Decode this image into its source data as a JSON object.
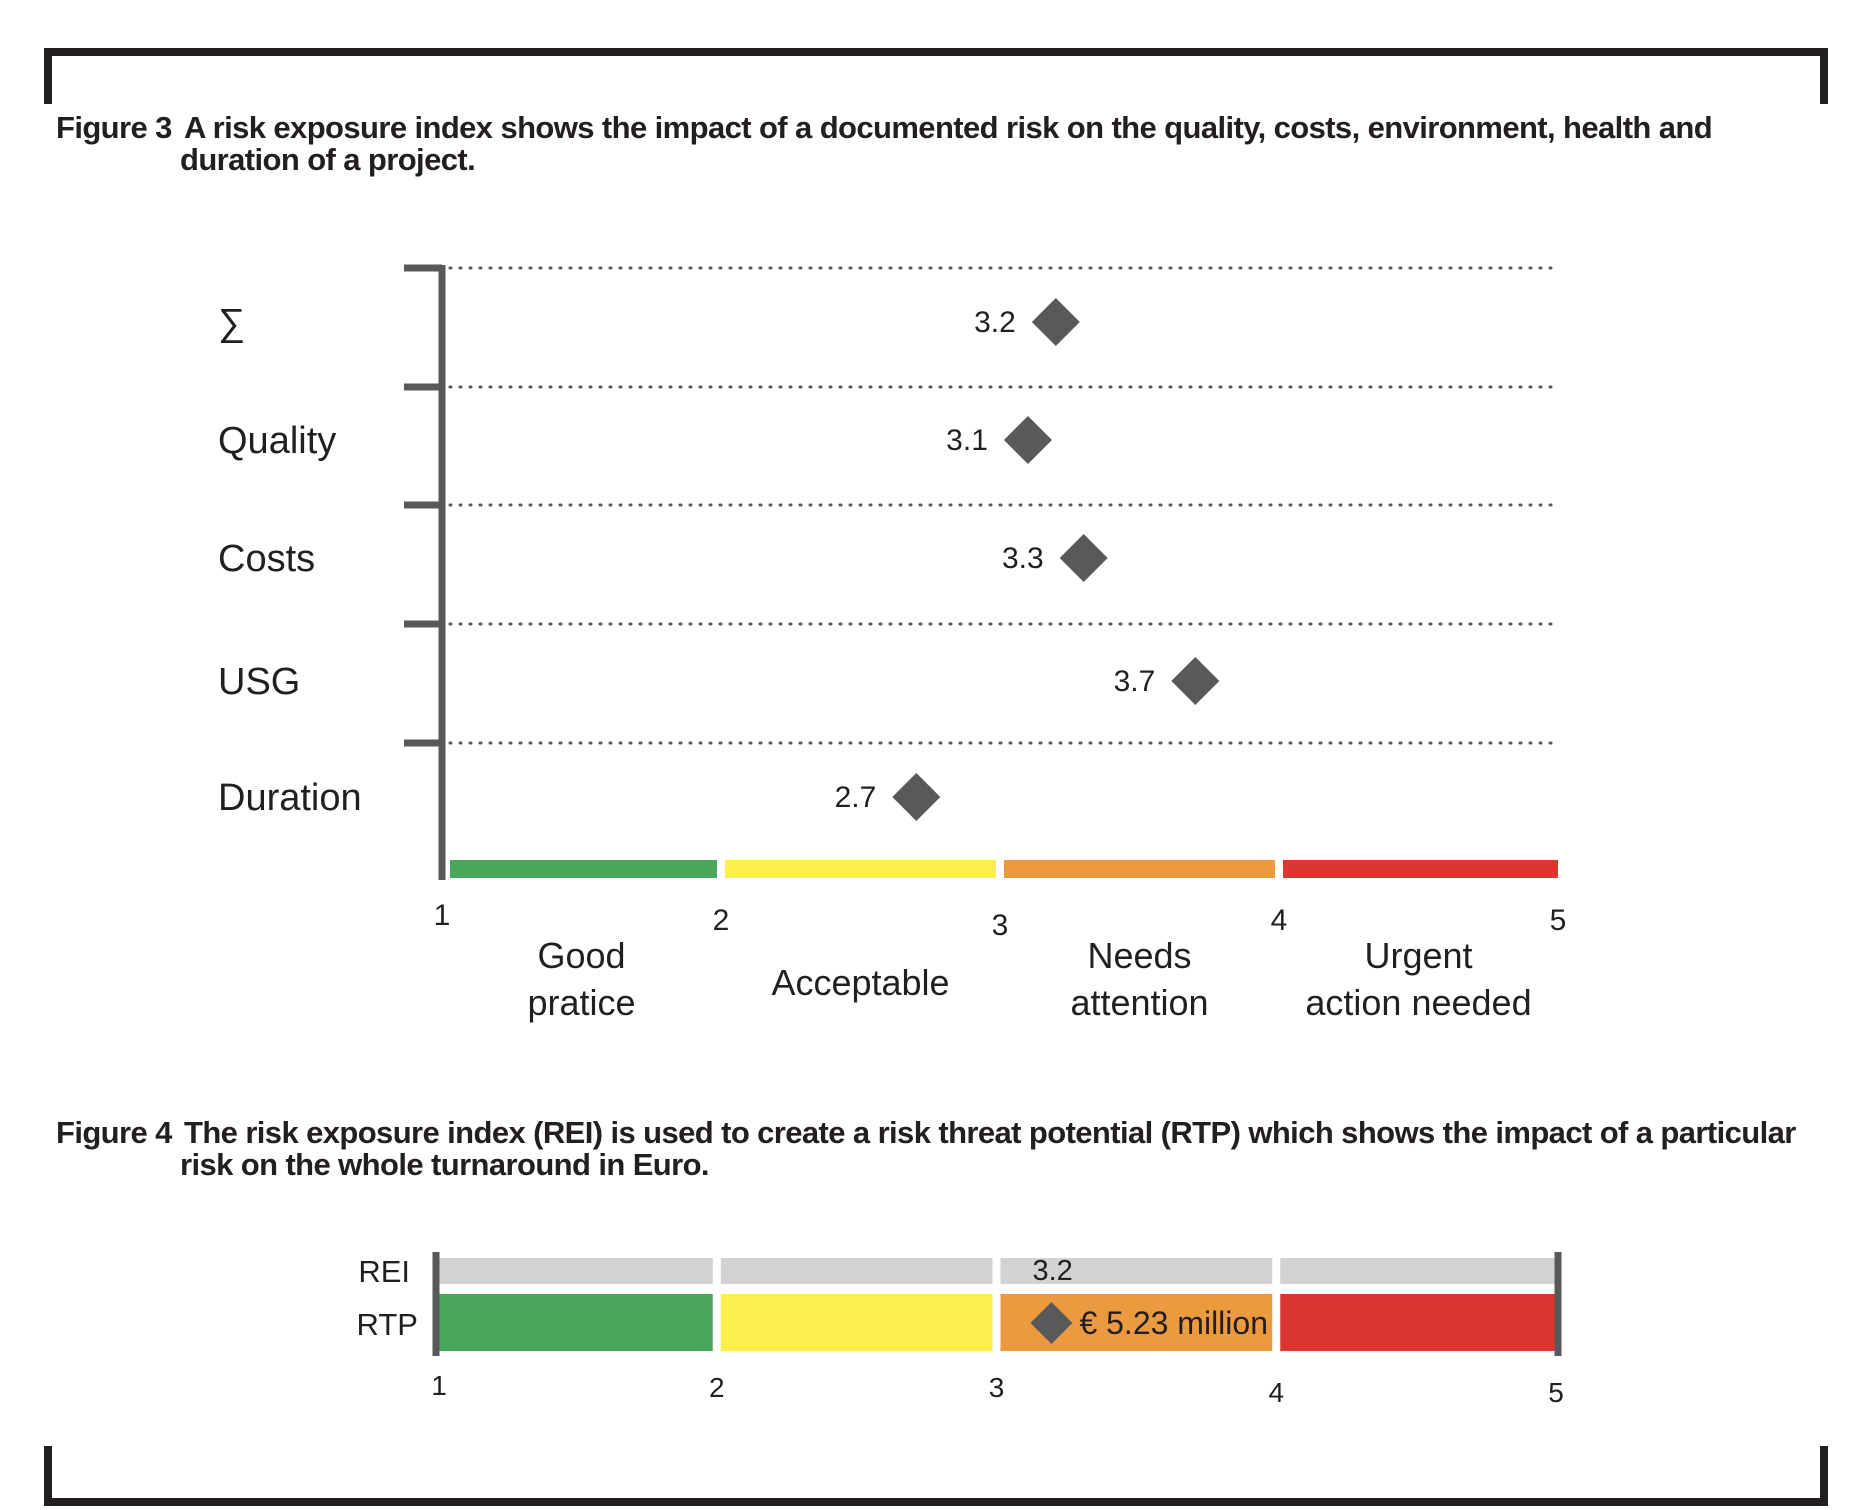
{
  "figure3": {
    "caption_number": "Figure 3",
    "caption_line1": "A risk exposure index shows the impact of a documented risk on the quality, costs, environment, health and",
    "caption_line2": "duration of a project."
  },
  "figure4": {
    "caption_number": "Figure 4",
    "caption_line1": "The risk exposure index (REI) is used to create a risk threat potential (RTP) which shows the impact of a particular",
    "caption_line2": "risk on the whole turnaround in Euro."
  },
  "colors": {
    "text": "#231f20",
    "marker": "#58595b",
    "axis": "#58595b",
    "good": "#4ba55a",
    "acceptable": "#fcee4f",
    "attention": "#ec9a3f",
    "urgent": "#db3731",
    "rei_bar": "#d1d2d3"
  },
  "chart_data": [
    {
      "type": "scatter",
      "title": "",
      "categories": [
        "∑",
        "Quality",
        "Costs",
        "USG",
        "Duration"
      ],
      "series": [
        {
          "values": [
            3.2,
            3.1,
            3.3,
            3.7,
            2.7
          ]
        }
      ],
      "value_labels": [
        "3.2",
        "3.1",
        "3.3",
        "3.7",
        "2.7"
      ],
      "xlim": [
        1,
        5
      ],
      "x_ticks": [
        "1",
        "2",
        "3",
        "4",
        "5"
      ],
      "grid": "dotted horizontal separators between categories",
      "bands": [
        {
          "from": 1,
          "to": 2,
          "label_lines": [
            "Good",
            "pratice"
          ],
          "color": "#4ba55a"
        },
        {
          "from": 2,
          "to": 3,
          "label_lines": [
            "Acceptable"
          ],
          "color": "#fcee4f"
        },
        {
          "from": 3,
          "to": 4,
          "label_lines": [
            "Needs",
            "attention"
          ],
          "color": "#ec9a3f"
        },
        {
          "from": 4,
          "to": 5,
          "label_lines": [
            "Urgent",
            "action needed"
          ],
          "color": "#db3731"
        }
      ]
    },
    {
      "type": "bar",
      "title": "",
      "rows": [
        "REI",
        "RTP"
      ],
      "xlim": [
        1,
        5
      ],
      "x_ticks": [
        "1",
        "2",
        "3",
        "4",
        "5"
      ],
      "rei_value": 3.2,
      "rei_label": "3.2",
      "rtp_label": "€ 5.23 million",
      "segments": [
        {
          "from": 1,
          "to": 2,
          "color": "#4ba55a"
        },
        {
          "from": 2,
          "to": 3,
          "color": "#fcee4f"
        },
        {
          "from": 3,
          "to": 4,
          "color": "#ec9a3f"
        },
        {
          "from": 4,
          "to": 5,
          "color": "#db3731"
        }
      ]
    }
  ]
}
